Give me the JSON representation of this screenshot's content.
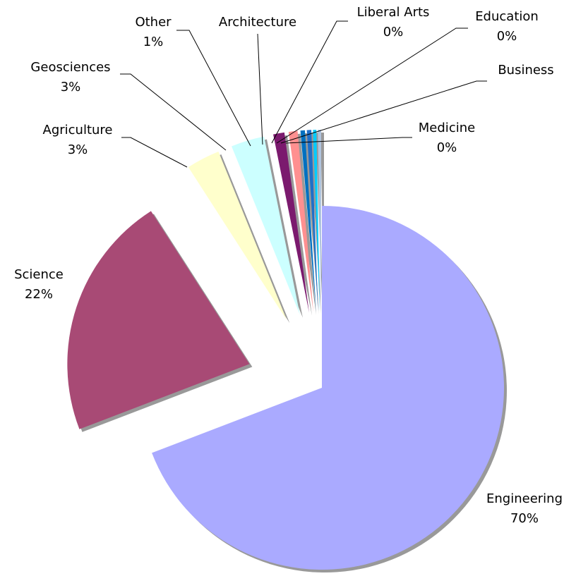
{
  "chart_data": {
    "type": "pie",
    "categories": [
      "Engineering",
      "Science",
      "Agriculture",
      "Geosciences",
      "Other",
      "Architecture",
      "Liberal Arts",
      "Education",
      "Business",
      "Medicine"
    ],
    "values": [
      70,
      22,
      3,
      3,
      1,
      0.8,
      0.4,
      0.4,
      0.3,
      0.3
    ],
    "value_labels": [
      "70%",
      "22%",
      "3%",
      "3%",
      "1%",
      null,
      "0%",
      "0%",
      null,
      "0%"
    ],
    "colors": [
      "#aaaaff",
      "#a84a75",
      "#ffffcc",
      "#ccffff",
      "#7b1a6e",
      "#ff9090",
      "#0070c0",
      "#1f6fc8",
      "#00ccff",
      "#b0c4de"
    ]
  }
}
